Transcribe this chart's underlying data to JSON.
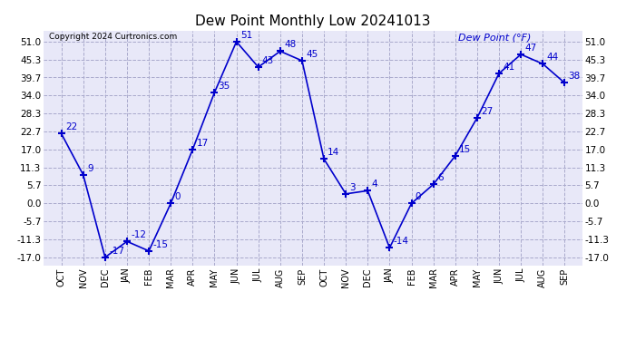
{
  "title": "Dew Point Monthly Low 20241013",
  "copyright": "Copyright 2024 Curtronics.com",
  "legend_label": "Dew Point (°F)",
  "x_labels": [
    "OCT",
    "NOV",
    "DEC",
    "JAN",
    "FEB",
    "MAR",
    "APR",
    "MAY",
    "JUN",
    "JUL",
    "AUG",
    "SEP",
    "OCT",
    "NOV",
    "DEC",
    "JAN",
    "FEB",
    "MAR",
    "APR",
    "MAY",
    "JUN",
    "JUL",
    "AUG",
    "SEP"
  ],
  "y_values": [
    22,
    9,
    -17,
    -12,
    -15,
    0,
    17,
    35,
    51,
    43,
    48,
    45,
    14,
    3,
    4,
    -14,
    0,
    6,
    15,
    27,
    41,
    47,
    44,
    38
  ],
  "y_ticks": [
    -17.0,
    -11.3,
    -5.7,
    0.0,
    5.7,
    11.3,
    17.0,
    22.7,
    28.3,
    34.0,
    39.7,
    45.3,
    51.0
  ],
  "y_min": -19.5,
  "y_max": 54.5,
  "line_color": "#0000cc",
  "marker": "+",
  "marker_size": 6,
  "marker_linewidth": 1.5,
  "grid_color": "#aaaacc",
  "grid_style": "dashed",
  "bg_color": "#ffffff",
  "plot_bg_color": "#e8e8f8",
  "title_fontsize": 11,
  "label_fontsize": 7,
  "tick_fontsize": 7.5,
  "annotation_fontsize": 7.5,
  "copyright_fontsize": 6.5,
  "legend_fontsize": 8
}
